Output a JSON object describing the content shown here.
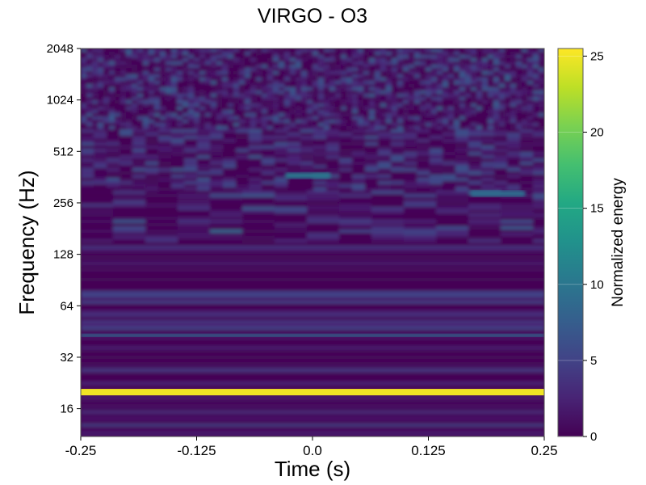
{
  "chart_data": {
    "type": "heatmap",
    "title": "VIRGO - O3",
    "xlabel": "Time (s)",
    "ylabel": "Frequency (Hz)",
    "xlim": [
      -0.25,
      0.25
    ],
    "ylim": [
      11,
      2048
    ],
    "y_scale": "log2",
    "x_ticks": [
      "-0.25",
      "-0.125",
      "0.0",
      "0.125",
      "0.25"
    ],
    "x_tick_values": [
      -0.25,
      -0.125,
      0.0,
      0.125,
      0.25
    ],
    "y_ticks": [
      "16",
      "32",
      "64",
      "128",
      "256",
      "512",
      "1024",
      "2048"
    ],
    "y_tick_values": [
      16,
      32,
      64,
      128,
      256,
      512,
      1024,
      2048
    ],
    "colorbar": {
      "label": "Normalized energy",
      "range": [
        0,
        25.5
      ],
      "ticks": [
        "0",
        "5",
        "10",
        "15",
        "20",
        "25"
      ],
      "tick_values": [
        0,
        5,
        10,
        15,
        20,
        25
      ],
      "colormap": "viridis"
    },
    "features": [
      {
        "frequency_hz": 20,
        "energy": 25,
        "time_extent": [
          -0.25,
          0.25
        ]
      },
      {
        "frequency_hz": 43,
        "energy": 9,
        "time_extent": [
          -0.25,
          0.25
        ]
      },
      {
        "frequency_hz": 370,
        "energy": 10,
        "time_extent": [
          -0.03,
          0.02
        ]
      },
      {
        "frequency_hz": 290,
        "energy": 9,
        "time_extent": [
          0.17,
          0.23
        ]
      }
    ]
  }
}
